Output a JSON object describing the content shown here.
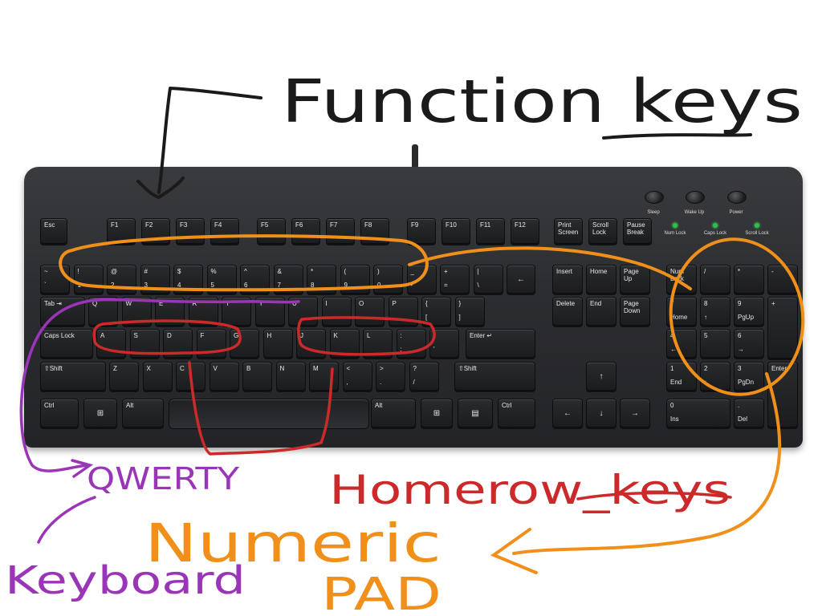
{
  "annotations": {
    "function_keys": "Function keys",
    "qwerty": "QWERTY",
    "homerow_keys": "Homerow_keys",
    "keyboard": "Keyboard",
    "numeric": "Numeric",
    "pad": "PAD"
  },
  "annotation_colors": {
    "function_keys": "#1a1a1a",
    "qwerty": "#9b35b8",
    "homerow": "#cc2a2a",
    "numeric": "#f0901a"
  },
  "status_lights": {
    "labels": [
      "Num Lock",
      "Caps Lock",
      "Scroll Lock"
    ],
    "color": "#2fbf4a"
  },
  "power_buttons": [
    "Sleep",
    "Wake Up",
    "Power"
  ],
  "keys": {
    "row_function": [
      {
        "id": "esc",
        "t": "Esc"
      },
      {
        "id": "f1",
        "t": "F1"
      },
      {
        "id": "f2",
        "t": "F2"
      },
      {
        "id": "f3",
        "t": "F3"
      },
      {
        "id": "f4",
        "t": "F4"
      },
      {
        "id": "f5",
        "t": "F5"
      },
      {
        "id": "f6",
        "t": "F6"
      },
      {
        "id": "f7",
        "t": "F7"
      },
      {
        "id": "f8",
        "t": "F8"
      },
      {
        "id": "f9",
        "t": "F9"
      },
      {
        "id": "f10",
        "t": "F10"
      },
      {
        "id": "f11",
        "t": "F11"
      },
      {
        "id": "f12",
        "t": "F12"
      },
      {
        "id": "printscreen",
        "t": "Print\nScreen"
      },
      {
        "id": "scrolllock",
        "t": "Scroll\nLock"
      },
      {
        "id": "pause",
        "t": "Pause\nBreak"
      }
    ],
    "row_number": [
      {
        "id": "tilde",
        "t": "~",
        "b": "`"
      },
      {
        "id": "1",
        "t": "!",
        "b": "1"
      },
      {
        "id": "2",
        "t": "@",
        "b": "2"
      },
      {
        "id": "3",
        "t": "#",
        "b": "3"
      },
      {
        "id": "4",
        "t": "$",
        "b": "4"
      },
      {
        "id": "5",
        "t": "%",
        "b": "5"
      },
      {
        "id": "6",
        "t": "^",
        "b": "6"
      },
      {
        "id": "7",
        "t": "&",
        "b": "7"
      },
      {
        "id": "8",
        "t": "*",
        "b": "8"
      },
      {
        "id": "9",
        "t": "(",
        "b": "9"
      },
      {
        "id": "0",
        "t": ")",
        "b": "0"
      },
      {
        "id": "minus",
        "t": "_",
        "b": "-"
      },
      {
        "id": "equals",
        "t": "+",
        "b": "="
      },
      {
        "id": "backslash",
        "t": "|",
        "b": "\\"
      },
      {
        "id": "backspace",
        "t": "←"
      }
    ],
    "row_top": [
      {
        "id": "tab",
        "t": "Tab ⇥"
      },
      {
        "id": "q",
        "t": "Q"
      },
      {
        "id": "w",
        "t": "W"
      },
      {
        "id": "e",
        "t": "E"
      },
      {
        "id": "r",
        "t": "R"
      },
      {
        "id": "t",
        "t": "T"
      },
      {
        "id": "y",
        "t": "Y"
      },
      {
        "id": "u",
        "t": "U"
      },
      {
        "id": "i",
        "t": "I"
      },
      {
        "id": "o",
        "t": "O"
      },
      {
        "id": "p",
        "t": "P"
      },
      {
        "id": "lbracket",
        "t": "{",
        "b": "["
      },
      {
        "id": "rbracket",
        "t": "}",
        "b": "]"
      }
    ],
    "row_home": [
      {
        "id": "capslock",
        "t": "Caps Lock"
      },
      {
        "id": "a",
        "t": "A"
      },
      {
        "id": "s",
        "t": "S"
      },
      {
        "id": "d",
        "t": "D"
      },
      {
        "id": "f",
        "t": "F"
      },
      {
        "id": "g",
        "t": "G"
      },
      {
        "id": "h",
        "t": "H"
      },
      {
        "id": "j",
        "t": "J"
      },
      {
        "id": "k",
        "t": "K"
      },
      {
        "id": "l",
        "t": "L"
      },
      {
        "id": "semicolon",
        "t": ":",
        "b": ";"
      },
      {
        "id": "quote",
        "t": "\"",
        "b": "'"
      },
      {
        "id": "enter",
        "t": "Enter ↵"
      }
    ],
    "row_bottom": [
      {
        "id": "lshift",
        "t": "⇧Shift"
      },
      {
        "id": "z",
        "t": "Z"
      },
      {
        "id": "x",
        "t": "X"
      },
      {
        "id": "c",
        "t": "C"
      },
      {
        "id": "v",
        "t": "V"
      },
      {
        "id": "b",
        "t": "B"
      },
      {
        "id": "n",
        "t": "N"
      },
      {
        "id": "m",
        "t": "M"
      },
      {
        "id": "comma",
        "t": "<",
        "b": ","
      },
      {
        "id": "period",
        "t": ">",
        "b": "."
      },
      {
        "id": "slash",
        "t": "?",
        "b": "/"
      },
      {
        "id": "rshift",
        "t": "⇧Shift"
      }
    ],
    "row_space": [
      {
        "id": "lctrl",
        "t": "Ctrl"
      },
      {
        "id": "lwin",
        "t": "⊞"
      },
      {
        "id": "lalt",
        "t": "Alt"
      },
      {
        "id": "ralt",
        "t": "Alt"
      },
      {
        "id": "rwin",
        "t": "⊞"
      },
      {
        "id": "menu",
        "t": "▤"
      },
      {
        "id": "rctrl",
        "t": "Ctrl"
      }
    ],
    "nav": [
      {
        "id": "insert",
        "t": "Insert"
      },
      {
        "id": "home",
        "t": "Home"
      },
      {
        "id": "pageup",
        "t": "Page\nUp"
      },
      {
        "id": "delete",
        "t": "Delete"
      },
      {
        "id": "end",
        "t": "End"
      },
      {
        "id": "pagedown",
        "t": "Page\nDown"
      }
    ],
    "arrows": [
      {
        "id": "up",
        "t": "↑"
      },
      {
        "id": "left",
        "t": "←"
      },
      {
        "id": "down",
        "t": "↓"
      },
      {
        "id": "right",
        "t": "→"
      }
    ],
    "numpad": [
      {
        "id": "numlock",
        "t": "Num\nLock"
      },
      {
        "id": "divide",
        "t": "/"
      },
      {
        "id": "multiply",
        "t": "*"
      },
      {
        "id": "subtract",
        "t": "-"
      },
      {
        "id": "num7",
        "t": "7",
        "b": "Home"
      },
      {
        "id": "num8",
        "t": "8",
        "b": "↑"
      },
      {
        "id": "num9",
        "t": "9",
        "b": "PgUp"
      },
      {
        "id": "add",
        "t": "+"
      },
      {
        "id": "num4",
        "t": "4",
        "b": "←"
      },
      {
        "id": "num5",
        "t": "5"
      },
      {
        "id": "num6",
        "t": "6",
        "b": "→"
      },
      {
        "id": "num1",
        "t": "1",
        "b": "End"
      },
      {
        "id": "num2",
        "t": "2",
        "b": "↓"
      },
      {
        "id": "num3",
        "t": "3",
        "b": "PgDn"
      },
      {
        "id": "numenter",
        "t": "Enter"
      },
      {
        "id": "num0",
        "t": "0",
        "b": "Ins"
      },
      {
        "id": "decimal",
        "t": ".",
        "b": "Del"
      }
    ]
  }
}
